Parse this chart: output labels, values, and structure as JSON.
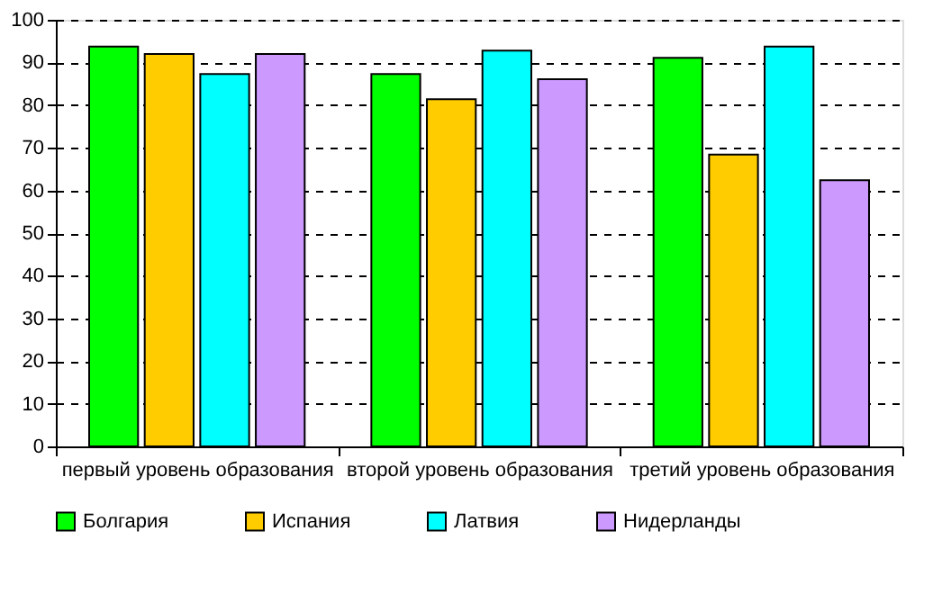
{
  "chart_data": {
    "type": "bar",
    "categories": [
      "первый уровень образования",
      "второй уровень образования",
      "третий уровень образования"
    ],
    "series": [
      {
        "name": "Болгария",
        "color": "#00ff00",
        "values": [
          93.7,
          87.3,
          91.1
        ]
      },
      {
        "name": "Испания",
        "color": "#ffcc00",
        "values": [
          92.0,
          81.4,
          68.4
        ]
      },
      {
        "name": "Латвия",
        "color": "#00ffff",
        "values": [
          87.3,
          92.8,
          93.7
        ]
      },
      {
        "name": "Нидерланды",
        "color": "#cc99ff",
        "values": [
          92.0,
          86.1,
          62.4
        ]
      }
    ],
    "ylim": [
      0,
      100
    ],
    "yticks": [
      0,
      10,
      20,
      30,
      40,
      50,
      60,
      70,
      80,
      90,
      100
    ],
    "grid": "y",
    "legend": "bottom"
  }
}
